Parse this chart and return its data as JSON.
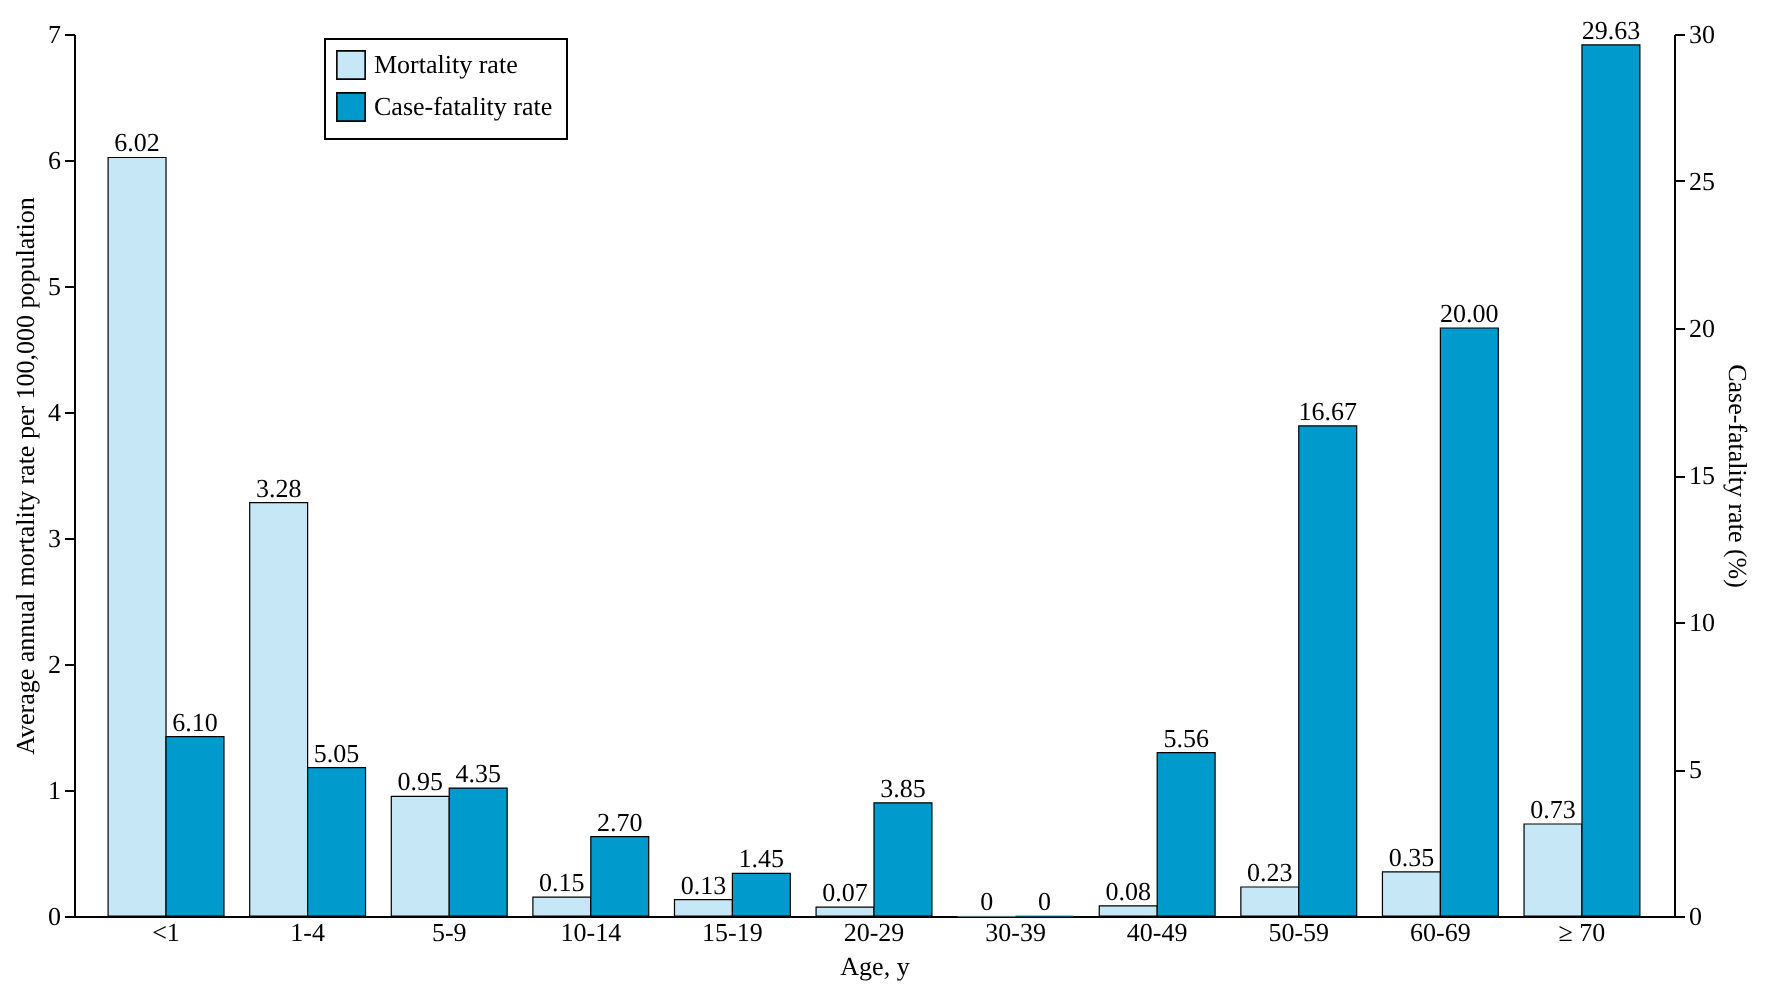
{
  "chart_data": {
    "type": "bar",
    "xlabel": "Age, y",
    "ylabel": "Average annual mortality rate per 100,000 population",
    "y2label": "Case-fatality rate (%)",
    "categories": [
      "<1",
      "1-4",
      "5-9",
      "10-14",
      "15-19",
      "20-29",
      "30-39",
      "40-49",
      "50-59",
      "60-69",
      "≥ 70"
    ],
    "series": [
      {
        "name": "Mortality rate",
        "color": "#c6e8f6",
        "values": [
          6.02,
          3.28,
          0.95,
          0.15,
          0.13,
          0.07,
          0,
          0.08,
          0.23,
          0.35,
          0.73
        ],
        "value_labels": [
          "6.02",
          "3.28",
          "0.95",
          "0.15",
          "0.13",
          "0.07",
          "0",
          "0.08",
          "0.23",
          "0.35",
          "0.73"
        ]
      },
      {
        "name": "Case-fatality rate",
        "color": "#009bcc",
        "axis": "y2",
        "values": [
          6.1,
          5.05,
          4.35,
          2.7,
          1.45,
          3.85,
          0,
          5.56,
          16.67,
          20.0,
          29.63
        ],
        "value_labels": [
          "6.10",
          "5.05",
          "4.35",
          "2.70",
          "1.45",
          "3.85",
          "0",
          "5.56",
          "16.67",
          "20.00",
          "29.63"
        ]
      }
    ],
    "ylim": [
      0,
      7
    ],
    "yticks": [
      0,
      1,
      2,
      3,
      4,
      5,
      6,
      7
    ],
    "y2lim": [
      0,
      30
    ],
    "y2ticks": [
      0,
      5,
      10,
      15,
      20,
      25,
      30
    ],
    "legend": "top left",
    "grid": false
  }
}
